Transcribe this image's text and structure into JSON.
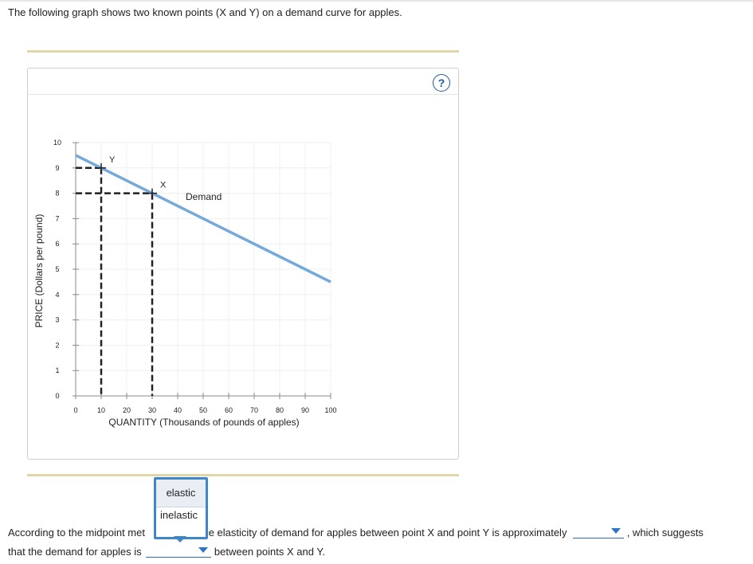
{
  "intro_text": "The following graph shows two known points (X and Y) on a demand curve for apples.",
  "help_label": "?",
  "chart_data": {
    "type": "line",
    "xlabel": "QUANTITY (Thousands of pounds of apples)",
    "ylabel": "PRICE (Dollars per pound)",
    "xlim": [
      0,
      100
    ],
    "ylim": [
      0,
      10
    ],
    "x_ticks": [
      0,
      10,
      20,
      30,
      40,
      50,
      60,
      70,
      80,
      90,
      100
    ],
    "y_ticks": [
      0,
      1,
      2,
      3,
      4,
      5,
      6,
      7,
      8,
      9,
      10
    ],
    "grid": true,
    "line_color": "#74a9dc",
    "series": [
      {
        "name": "Demand",
        "x": [
          0,
          100
        ],
        "y": [
          9.5,
          4.5
        ]
      }
    ],
    "points": [
      {
        "label": "Y",
        "x": 10,
        "y": 9
      },
      {
        "label": "X",
        "x": 30,
        "y": 8
      }
    ]
  },
  "question": {
    "part1": "According to the midpoint met",
    "part1b": "rice elasticity of demand for apples between point X and point Y is approximately",
    "part1c": ", which suggests",
    "part2": "that the demand for apples is",
    "part2b": "between points X and Y."
  },
  "dropdown": {
    "options": [
      "elastic",
      "inelastic"
    ]
  }
}
